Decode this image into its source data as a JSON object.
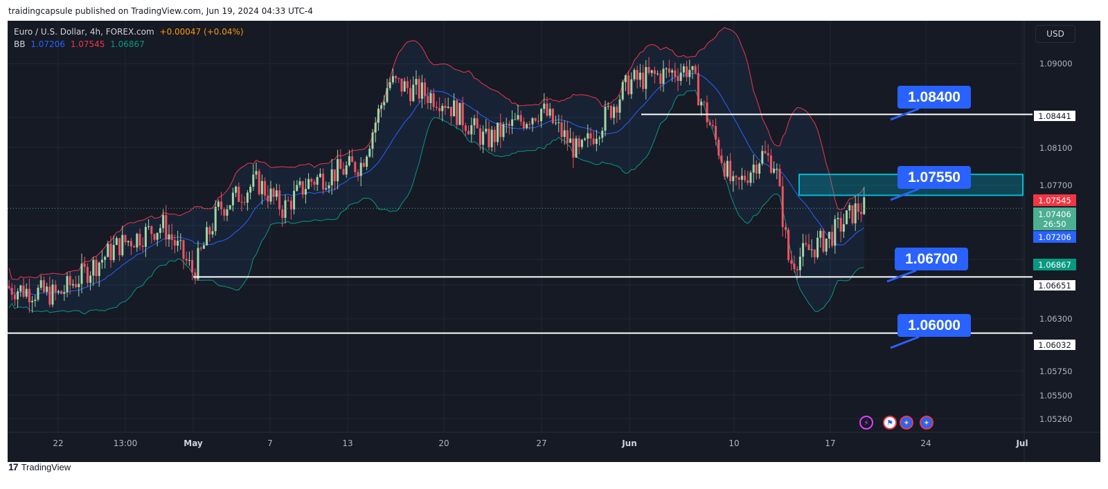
{
  "header": {
    "publisher_line": "traidingcapsule published on TradingView.com, Jun 19, 2024 04:33 UTC-4"
  },
  "legend": {
    "symbol": "Euro / U.S. Dollar, 4h, FOREX.com",
    "change": "+0.00047 (+0.04%)",
    "bb_label": "BB",
    "bb_basis": "1.07206",
    "bb_upper": "1.07545",
    "bb_lower": "1.06867"
  },
  "currency_button": "USD",
  "price_axis": {
    "ticks": [
      "1.09000",
      "1.08100",
      "1.07700",
      "1.06300",
      "1.05750",
      "1.05500",
      "1.05260"
    ],
    "line_labels": [
      "1.08441",
      "1.06651",
      "1.06032"
    ],
    "bb_upper_label": "1.07545",
    "last_price": "1.07406",
    "countdown": "26:50",
    "bb_basis_label": "1.07206",
    "bb_lower_label": "1.06867"
  },
  "date_axis": {
    "ticks": [
      "22",
      "13:00",
      "May",
      "7",
      "13",
      "20",
      "27",
      "Jun",
      "10",
      "17",
      "24",
      "Jul"
    ]
  },
  "callouts": [
    "1.08400",
    "1.07550",
    "1.06700",
    "1.06000"
  ],
  "event_icons": [
    "lightning-icon",
    "us-flag-icon",
    "eu-flag-icon",
    "eu-flag-icon"
  ],
  "brand": "TradingView",
  "colors": {
    "background": "#161a25",
    "bull": "#a5d6a7",
    "bear": "#f7525f",
    "bb_basis": "#2962ff",
    "bb_upper": "#f23645",
    "bb_lower": "#089981",
    "callout": "#2962ff",
    "zone": "#00bcd4"
  },
  "chart_data": {
    "type": "candlestick",
    "symbol": "EURUSD",
    "timeframe": "4h",
    "ylim": [
      1.0505,
      1.0935
    ],
    "horizontal_levels": [
      1.08441,
      1.06651,
      1.06032
    ],
    "zone": [
      1.0755,
      1.0778
    ],
    "close_path": [
      [
        "Apr 18",
        1.0655
      ],
      [
        "Apr 22",
        1.0645
      ],
      [
        "Apr 26",
        1.07
      ],
      [
        "Apr 29",
        1.0722
      ],
      [
        "May 1",
        1.067
      ],
      [
        "May 3",
        1.074
      ],
      [
        "May 6",
        1.077
      ],
      [
        "May 8",
        1.074
      ],
      [
        "May 10",
        1.077
      ],
      [
        "May 14",
        1.079
      ],
      [
        "May 16",
        1.088
      ],
      [
        "May 20",
        1.086
      ],
      [
        "May 23",
        1.0815
      ],
      [
        "May 27",
        1.085
      ],
      [
        "May 30",
        1.08
      ],
      [
        "Jun 3",
        1.088
      ],
      [
        "Jun 7",
        1.0895
      ],
      [
        "Jun 10",
        1.076
      ],
      [
        "Jun 12",
        1.08
      ],
      [
        "Jun 13",
        1.079
      ],
      [
        "Jun 14",
        1.068
      ],
      [
        "Jun 17",
        1.071
      ],
      [
        "Jun 19",
        1.0741
      ]
    ]
  }
}
